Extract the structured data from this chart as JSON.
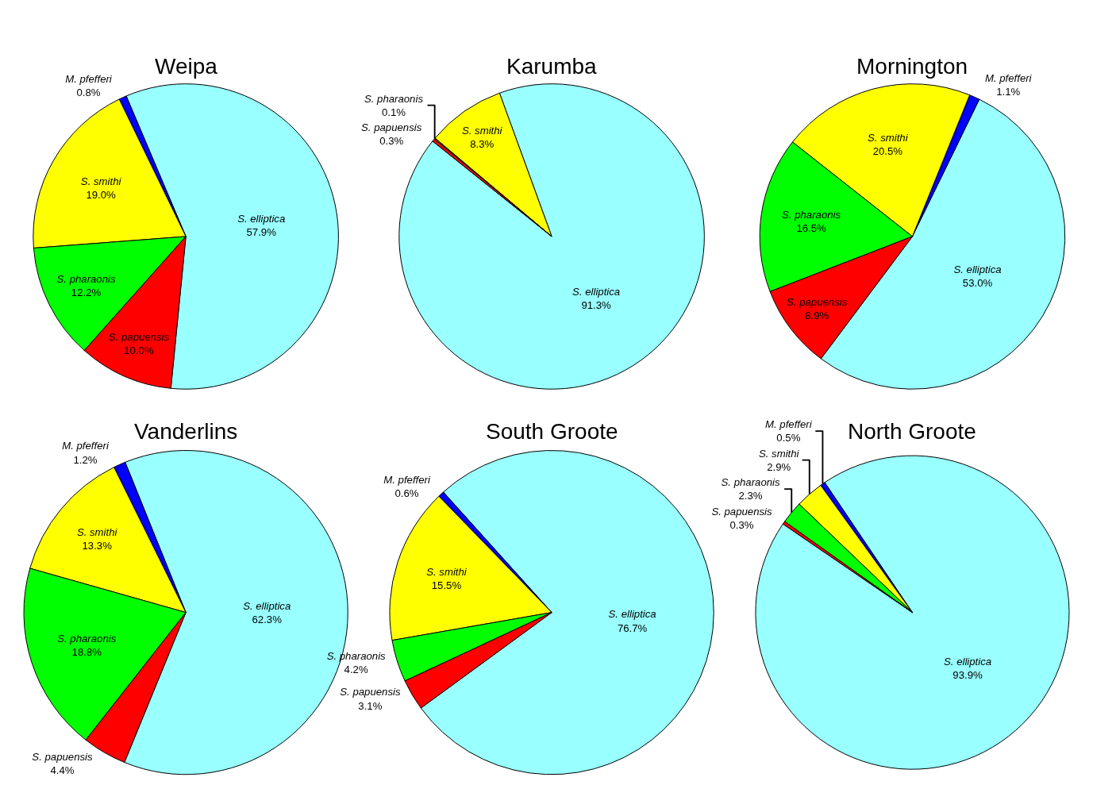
{
  "chart_data": [
    {
      "type": "pie",
      "title": "Weipa",
      "categories": [
        "S. elliptica",
        "M. pfefferi",
        "S. smithi",
        "S. pharaonis",
        "S. papuensis"
      ],
      "values": [
        57.9,
        0.8,
        19.0,
        12.2,
        10.0
      ],
      "value_labels": [
        "57.9%",
        "0.8%",
        "19.0%",
        "12.2%",
        "10.0%"
      ],
      "colors": [
        "#99ffff",
        "#0000ff",
        "#ffff00",
        "#00ff00",
        "#ff0000"
      ]
    },
    {
      "type": "pie",
      "title": "Karumba",
      "categories": [
        "S. elliptica",
        "S. smithi",
        "S. pharaonis",
        "S. papuensis"
      ],
      "values": [
        91.3,
        8.3,
        0.1,
        0.3
      ],
      "value_labels": [
        "91.3%",
        "8.3%",
        "0.1%",
        "0.3%"
      ],
      "colors": [
        "#99ffff",
        "#ffff00",
        "#00ff00",
        "#ff0000"
      ]
    },
    {
      "type": "pie",
      "title": "Mornington",
      "categories": [
        "S. elliptica",
        "M. pfefferi",
        "S. smithi",
        "S. pharaonis",
        "S. papuensis"
      ],
      "values": [
        53.0,
        1.1,
        20.5,
        16.5,
        8.9
      ],
      "value_labels": [
        "53.0%",
        "1.1%",
        "20.5%",
        "16.5%",
        "8.9%"
      ],
      "colors": [
        "#99ffff",
        "#0000ff",
        "#ffff00",
        "#00ff00",
        "#ff0000"
      ]
    },
    {
      "type": "pie",
      "title": "Vanderlins",
      "categories": [
        "S. elliptica",
        "M. pfefferi",
        "S. smithi",
        "S. pharaonis",
        "S. papuensis"
      ],
      "values": [
        62.3,
        1.2,
        13.3,
        18.8,
        4.4
      ],
      "value_labels": [
        "62.3%",
        "1.2%",
        "13.3%",
        "18.8%",
        "4.4%"
      ],
      "colors": [
        "#99ffff",
        "#0000ff",
        "#ffff00",
        "#00ff00",
        "#ff0000"
      ]
    },
    {
      "type": "pie",
      "title": "South Groote",
      "categories": [
        "S. elliptica",
        "M. pfefferi",
        "S. smithi",
        "S. pharaonis",
        "S. papuensis"
      ],
      "values": [
        76.7,
        0.6,
        15.5,
        4.2,
        3.1
      ],
      "value_labels": [
        "76.7%",
        "0.6%",
        "15.5%",
        "4.2%",
        "3.1%"
      ],
      "colors": [
        "#99ffff",
        "#0000ff",
        "#ffff00",
        "#00ff00",
        "#ff0000"
      ]
    },
    {
      "type": "pie",
      "title": "North Groote",
      "categories": [
        "S. elliptica",
        "M. pfefferi",
        "S. smithi",
        "S. pharaonis",
        "S. papuensis"
      ],
      "values": [
        93.9,
        0.5,
        2.9,
        2.3,
        0.3
      ],
      "value_labels": [
        "93.9%",
        "0.5%",
        "2.9%",
        "2.3%",
        "0.3%"
      ],
      "colors": [
        "#99ffff",
        "#0000ff",
        "#ffff00",
        "#00ff00",
        "#ff0000"
      ]
    }
  ]
}
